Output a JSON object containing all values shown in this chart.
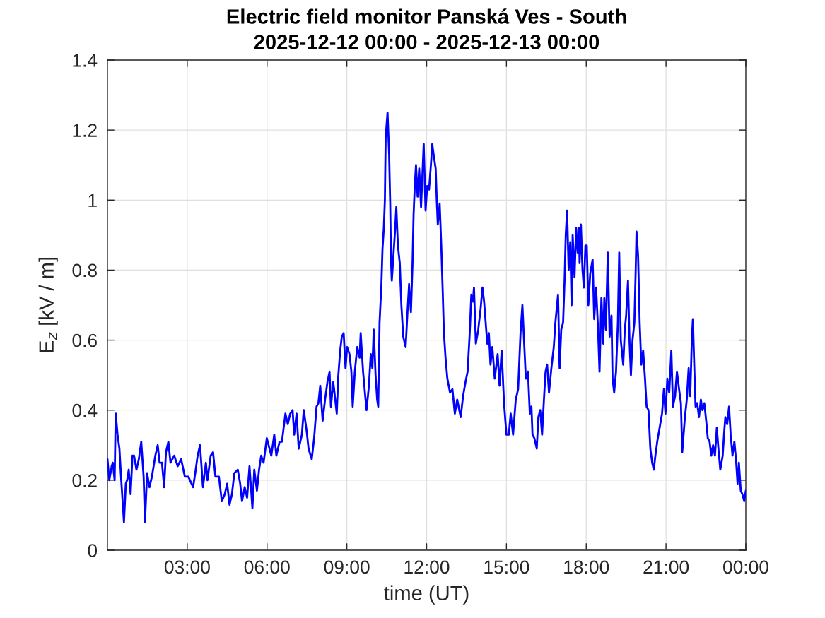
{
  "chart_data": {
    "type": "line",
    "title": "Electric field monitor Panská Ves - South",
    "subtitle": "2025-12-12 00:00 - 2025-12-13 00:00",
    "xlabel": "time (UT)",
    "ylabel": "E$_{z}$ [kV / m]",
    "x": [
      0,
      0.07,
      0.16,
      0.2,
      0.27,
      0.31,
      0.38,
      0.45,
      0.51,
      0.62,
      0.69,
      0.74,
      0.8,
      0.87,
      0.94,
      1,
      1.09,
      1.18,
      1.27,
      1.36,
      1.41,
      1.49,
      1.58,
      1.67,
      1.8,
      1.89,
      1.96,
      2.05,
      2.13,
      2.2,
      2.29,
      2.37,
      2.51,
      2.64,
      2.77,
      2.91,
      3.04,
      3.22,
      3.3,
      3.39,
      3.48,
      3.59,
      3.7,
      3.76,
      3.88,
      3.97,
      4.06,
      4.19,
      4.3,
      4.41,
      4.5,
      4.59,
      4.68,
      4.77,
      4.9,
      4.99,
      5.06,
      5.16,
      5.25,
      5.34,
      5.45,
      5.52,
      5.62,
      5.7,
      5.78,
      5.87,
      5.99,
      6.16,
      6.27,
      6.35,
      6.47,
      6.56,
      6.69,
      6.78,
      6.87,
      6.96,
      7.02,
      7.11,
      7.19,
      7.31,
      7.38,
      7.49,
      7.56,
      7.68,
      7.77,
      7.86,
      7.93,
      8,
      8.09,
      8.18,
      8.27,
      8.35,
      8.4,
      8.49,
      8.55,
      8.62,
      8.68,
      8.75,
      8.81,
      8.88,
      8.95,
      9.01,
      9.1,
      9.17,
      9.22,
      9.3,
      9.39,
      9.48,
      9.52,
      9.61,
      9.68,
      9.74,
      9.83,
      9.9,
      9.96,
      10.01,
      10.08,
      10.14,
      10.18,
      10.23,
      10.3,
      10.34,
      10.39,
      10.43,
      10.46,
      10.53,
      10.59,
      10.63,
      10.66,
      10.69,
      10.75,
      10.81,
      10.86,
      10.92,
      10.99,
      11.05,
      11.12,
      11.21,
      11.28,
      11.34,
      11.41,
      11.47,
      11.51,
      11.56,
      11.6,
      11.66,
      11.72,
      11.79,
      11.84,
      11.89,
      11.96,
      12.02,
      12.09,
      12.16,
      12.21,
      12.28,
      12.34,
      12.38,
      12.42,
      12.49,
      12.55,
      12.6,
      12.65,
      12.71,
      12.78,
      12.88,
      12.97,
      13.06,
      13.15,
      13.28,
      13.37,
      13.46,
      13.54,
      13.62,
      13.68,
      13.74,
      13.78,
      13.85,
      13.94,
      14.03,
      14.1,
      14.16,
      14.21,
      14.28,
      14.34,
      14.4,
      14.47,
      14.56,
      14.67,
      14.74,
      14.82,
      14.91,
      15,
      15.09,
      15.16,
      15.25,
      15.35,
      15.44,
      15.53,
      15.6,
      15.68,
      15.73,
      15.81,
      15.88,
      15.94,
      15.98,
      16.05,
      16.14,
      16.2,
      16.27,
      16.34,
      16.41,
      16.47,
      16.53,
      16.6,
      16.69,
      16.78,
      16.84,
      16.94,
      17,
      17.06,
      17.13,
      17.19,
      17.23,
      17.28,
      17.34,
      17.4,
      17.45,
      17.49,
      17.56,
      17.62,
      17.68,
      17.73,
      17.75,
      17.8,
      17.86,
      17.91,
      17.97,
      18.02,
      18.08,
      18.15,
      18.24,
      18.3,
      18.37,
      18.44,
      18.5,
      18.57,
      18.64,
      18.68,
      18.74,
      18.81,
      18.88,
      18.95,
      18.99,
      19.05,
      19.12,
      19.19,
      19.24,
      19.3,
      19.39,
      19.45,
      19.5,
      19.57,
      19.63,
      19.68,
      19.74,
      19.81,
      19.86,
      19.89,
      19.95,
      20.01,
      20.07,
      20.14,
      20.21,
      20.27,
      20.34,
      20.41,
      20.48,
      20.54,
      20.6,
      20.67,
      20.76,
      20.85,
      20.92,
      20.98,
      21.05,
      21.12,
      21.2,
      21.26,
      21.34,
      21.41,
      21.49,
      21.56,
      21.61,
      21.66,
      21.71,
      21.78,
      21.85,
      21.91,
      21.97,
      22.01,
      22.06,
      22.11,
      22.17,
      22.24,
      22.31,
      22.37,
      22.44,
      22.51,
      22.57,
      22.64,
      22.7,
      22.77,
      22.84,
      22.91,
      22.97,
      23.04,
      23.13,
      23.19,
      23.23,
      23.3,
      23.37,
      23.43,
      23.5,
      23.57,
      23.63,
      23.69,
      23.74,
      23.81,
      23.87,
      23.94,
      24
    ],
    "series": [
      {
        "color": "#0000ff",
        "values": [
          0.26,
          0.2,
          0.24,
          0.25,
          0.2,
          0.39,
          0.33,
          0.29,
          0.21,
          0.08,
          0.19,
          0.2,
          0.23,
          0.16,
          0.27,
          0.27,
          0.23,
          0.26,
          0.31,
          0.21,
          0.08,
          0.22,
          0.18,
          0.21,
          0.27,
          0.3,
          0.25,
          0.25,
          0.18,
          0.28,
          0.31,
          0.25,
          0.27,
          0.24,
          0.26,
          0.21,
          0.21,
          0.18,
          0.22,
          0.27,
          0.3,
          0.18,
          0.25,
          0.2,
          0.27,
          0.28,
          0.21,
          0.21,
          0.14,
          0.16,
          0.19,
          0.13,
          0.16,
          0.22,
          0.23,
          0.19,
          0.14,
          0.18,
          0.15,
          0.24,
          0.12,
          0.23,
          0.17,
          0.23,
          0.27,
          0.25,
          0.32,
          0.27,
          0.33,
          0.27,
          0.31,
          0.31,
          0.39,
          0.36,
          0.39,
          0.4,
          0.33,
          0.39,
          0.29,
          0.33,
          0.4,
          0.34,
          0.29,
          0.26,
          0.32,
          0.41,
          0.42,
          0.47,
          0.37,
          0.43,
          0.48,
          0.51,
          0.41,
          0.48,
          0.44,
          0.39,
          0.5,
          0.57,
          0.61,
          0.62,
          0.52,
          0.58,
          0.56,
          0.51,
          0.41,
          0.51,
          0.58,
          0.55,
          0.62,
          0.51,
          0.45,
          0.4,
          0.47,
          0.56,
          0.52,
          0.63,
          0.5,
          0.43,
          0.41,
          0.65,
          0.76,
          0.86,
          0.92,
          1,
          1.18,
          1.25,
          1.13,
          0.99,
          0.83,
          0.77,
          0.84,
          0.91,
          0.98,
          0.87,
          0.82,
          0.7,
          0.61,
          0.58,
          0.68,
          0.76,
          0.68,
          0.82,
          0.96,
          1.05,
          1.1,
          1.01,
          1.09,
          0.98,
          1.07,
          1.16,
          0.97,
          1.04,
          1.03,
          1.1,
          1.16,
          1.12,
          1.09,
          1,
          0.93,
          0.99,
          0.87,
          0.75,
          0.62,
          0.55,
          0.49,
          0.45,
          0.46,
          0.39,
          0.43,
          0.38,
          0.44,
          0.48,
          0.51,
          0.62,
          0.73,
          0.71,
          0.75,
          0.59,
          0.63,
          0.69,
          0.75,
          0.71,
          0.66,
          0.59,
          0.62,
          0.53,
          0.58,
          0.49,
          0.56,
          0.47,
          0.57,
          0.42,
          0.33,
          0.33,
          0.39,
          0.33,
          0.43,
          0.46,
          0.62,
          0.7,
          0.57,
          0.49,
          0.51,
          0.39,
          0.41,
          0.33,
          0.32,
          0.29,
          0.38,
          0.4,
          0.33,
          0.43,
          0.51,
          0.53,
          0.45,
          0.52,
          0.58,
          0.65,
          0.73,
          0.52,
          0.63,
          0.65,
          0.78,
          0.9,
          0.97,
          0.8,
          0.88,
          0.7,
          0.9,
          0.78,
          0.92,
          0.85,
          0.92,
          0.82,
          0.93,
          0.8,
          0.75,
          0.87,
          0.87,
          0.7,
          0.79,
          0.83,
          0.66,
          0.75,
          0.64,
          0.51,
          0.72,
          0.59,
          0.72,
          0.63,
          0.85,
          0.61,
          0.67,
          0.49,
          0.45,
          0.51,
          0.65,
          0.85,
          0.6,
          0.53,
          0.63,
          0.67,
          0.77,
          0.59,
          0.5,
          0.6,
          0.65,
          0.8,
          0.91,
          0.84,
          0.65,
          0.53,
          0.57,
          0.49,
          0.41,
          0.4,
          0.29,
          0.25,
          0.23,
          0.27,
          0.31,
          0.35,
          0.39,
          0.46,
          0.39,
          0.49,
          0.45,
          0.57,
          0.41,
          0.44,
          0.51,
          0.46,
          0.42,
          0.28,
          0.33,
          0.38,
          0.43,
          0.52,
          0.44,
          0.6,
          0.66,
          0.53,
          0.41,
          0.42,
          0.38,
          0.43,
          0.4,
          0.42,
          0.37,
          0.32,
          0.31,
          0.27,
          0.3,
          0.27,
          0.35,
          0.29,
          0.23,
          0.27,
          0.34,
          0.38,
          0.36,
          0.41,
          0.33,
          0.27,
          0.31,
          0.26,
          0.19,
          0.25,
          0.17,
          0.16,
          0.14,
          0.17
        ]
      }
    ],
    "xlim": [
      0,
      24
    ],
    "xticks": [
      {
        "value": 3,
        "label": "03:00"
      },
      {
        "value": 6,
        "label": "06:00"
      },
      {
        "value": 9,
        "label": "09:00"
      },
      {
        "value": 12,
        "label": "12:00"
      },
      {
        "value": 15,
        "label": "15:00"
      },
      {
        "value": 18,
        "label": "18:00"
      },
      {
        "value": 21,
        "label": "21:00"
      },
      {
        "value": 24,
        "label": "00:00"
      }
    ],
    "ylim": [
      0,
      1.4
    ],
    "yticks": [
      0,
      0.2,
      0.4,
      0.6,
      0.8,
      1,
      1.2,
      1.4
    ],
    "grid": true
  }
}
